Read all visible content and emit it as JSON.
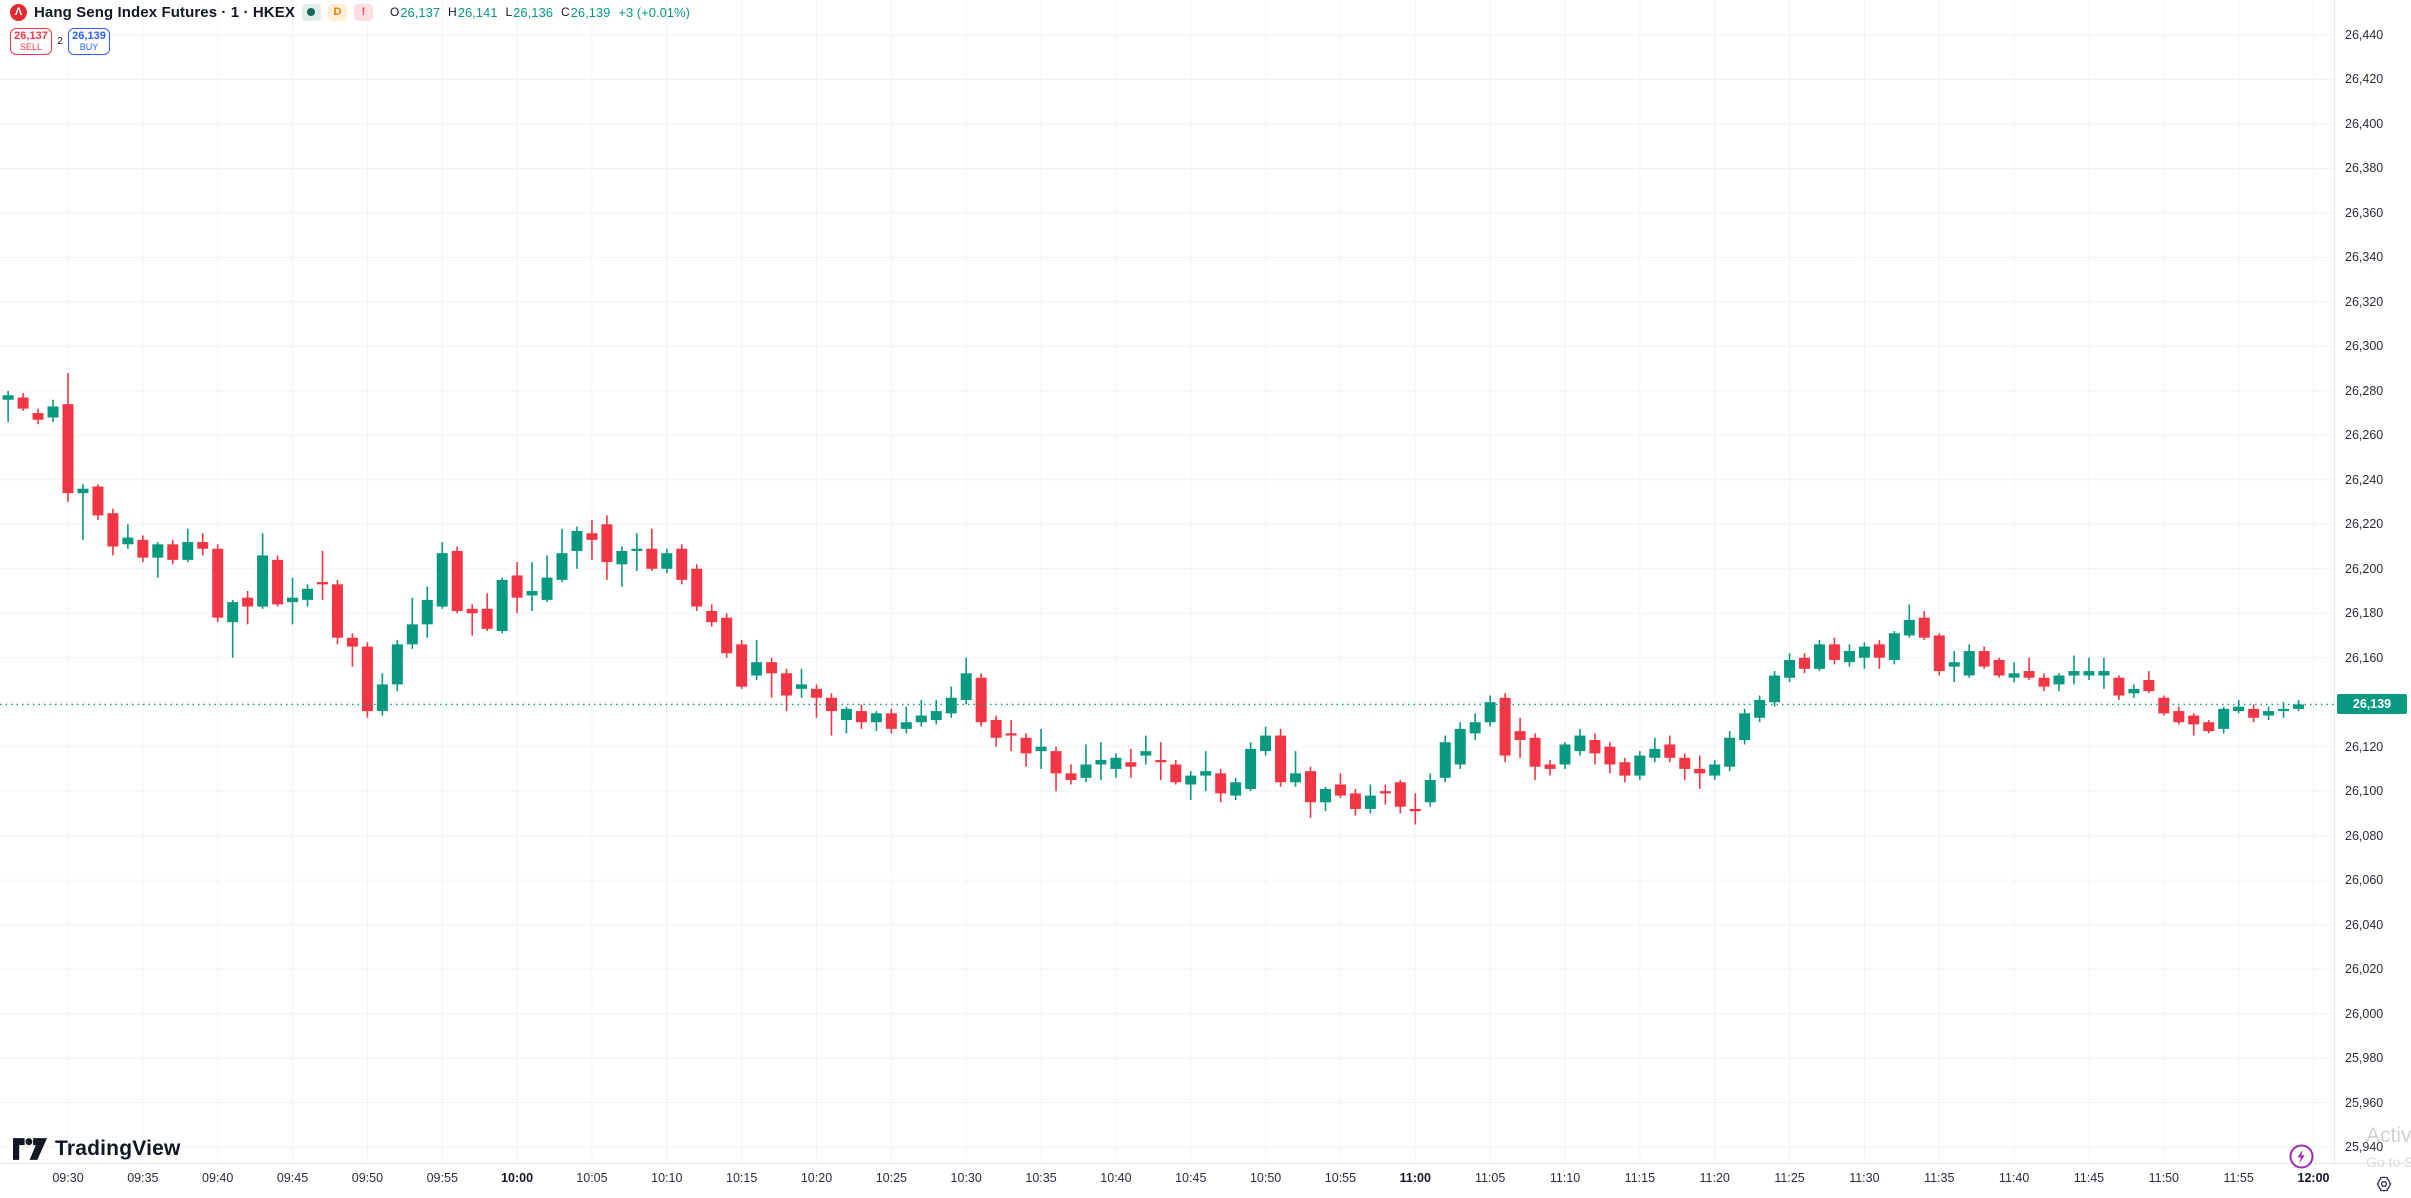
{
  "header": {
    "logo_glyph": "Λ",
    "symbol_title": "Hang Seng Index Futures · 1 · HKEX",
    "interval_badge": "D",
    "alert_badge": "!",
    "ohlc": {
      "o_letter": "O",
      "o_value": "26,137",
      "h_letter": "H",
      "h_value": "26,141",
      "l_letter": "L",
      "l_value": "26,136",
      "c_letter": "C",
      "c_value": "26,139",
      "change": "+3 (+0.01%)"
    }
  },
  "trade_panel": {
    "sell_price": "26,137",
    "sell_label": "SELL",
    "spread": "2",
    "buy_price": "26,139",
    "buy_label": "BUY"
  },
  "brand": {
    "name": "TradingView"
  },
  "os_watermark": {
    "line1": "Activ",
    "line2": "Go to S"
  },
  "last_price": {
    "value": 26139,
    "label": "26,139"
  },
  "chart_data": {
    "type": "candlestick",
    "title": "Hang Seng Index Futures",
    "interval_minutes": 1,
    "exchange": "HKEX",
    "up_color": "#089981",
    "down_color": "#f23645",
    "grid_color": "#f0f3fa",
    "price_line_color": "#089981",
    "ylim": [
      25932,
      26456
    ],
    "y_ticks": [
      26440,
      26420,
      26400,
      26380,
      26360,
      26340,
      26320,
      26300,
      26280,
      26260,
      26240,
      26220,
      26200,
      26180,
      26160,
      26120,
      26100,
      26080,
      26060,
      26040,
      26020,
      26000,
      25980,
      25960,
      25940
    ],
    "x_ticks": [
      "09:30",
      "09:35",
      "09:40",
      "09:45",
      "09:50",
      "09:55",
      "10:00",
      "10:05",
      "10:10",
      "10:15",
      "10:20",
      "10:25",
      "10:30",
      "10:35",
      "10:40",
      "10:45",
      "10:50",
      "10:55",
      "11:00",
      "11:05",
      "11:10",
      "11:15",
      "11:20",
      "11:25",
      "11:30",
      "11:35",
      "11:40",
      "11:45",
      "11:50",
      "11:55",
      "12:00"
    ],
    "bold_x_ticks": [
      "10:00",
      "11:00",
      "12:00"
    ],
    "candles": [
      [
        "09:26",
        26276,
        26280,
        26266,
        26278
      ],
      [
        "09:27",
        26277,
        26279,
        26271,
        26272
      ],
      [
        "09:28",
        26270,
        26272,
        26265,
        26267
      ],
      [
        "09:29",
        26268,
        26276,
        26266,
        26273
      ],
      [
        "09:30",
        26274,
        26288,
        26230,
        26234
      ],
      [
        "09:31",
        26234,
        26238,
        26213,
        26236
      ],
      [
        "09:32",
        26237,
        26238,
        26222,
        26224
      ],
      [
        "09:33",
        26225,
        26227,
        26206,
        26210
      ],
      [
        "09:34",
        26211,
        26220,
        26209,
        26214
      ],
      [
        "09:35",
        26213,
        26215,
        26203,
        26205
      ],
      [
        "09:36",
        26205,
        26212,
        26196,
        26211
      ],
      [
        "09:37",
        26211,
        26213,
        26202,
        26204
      ],
      [
        "09:38",
        26204,
        26218,
        26203,
        26212
      ],
      [
        "09:39",
        26212,
        26216,
        26206,
        26209
      ],
      [
        "09:40",
        26209,
        26211,
        26176,
        26178
      ],
      [
        "09:41",
        26176,
        26186,
        26160,
        26185
      ],
      [
        "09:42",
        26187,
        26190,
        26175,
        26183
      ],
      [
        "09:43",
        26183,
        26216,
        26182,
        26206
      ],
      [
        "09:44",
        26204,
        26206,
        26183,
        26184
      ],
      [
        "09:45",
        26185,
        26196,
        26175,
        26187
      ],
      [
        "09:46",
        26186,
        26193,
        26183,
        26191
      ],
      [
        "09:47",
        26194,
        26208,
        26186,
        26193
      ],
      [
        "09:48",
        26193,
        26195,
        26166,
        26169
      ],
      [
        "09:49",
        26169,
        26171,
        26156,
        26165
      ],
      [
        "09:50",
        26165,
        26167,
        26133,
        26136
      ],
      [
        "09:51",
        26136,
        26153,
        26134,
        26148
      ],
      [
        "09:52",
        26148,
        26168,
        26145,
        26166
      ],
      [
        "09:53",
        26166,
        26187,
        26164,
        26175
      ],
      [
        "09:54",
        26175,
        26192,
        26169,
        26186
      ],
      [
        "09:55",
        26183,
        26212,
        26182,
        26207
      ],
      [
        "09:56",
        26208,
        26210,
        26180,
        26181
      ],
      [
        "09:57",
        26182,
        26184,
        26170,
        26180
      ],
      [
        "09:58",
        26182,
        26189,
        26172,
        26173
      ],
      [
        "09:59",
        26172,
        26196,
        26171,
        26195
      ],
      [
        "10:00",
        26197,
        26203,
        26180,
        26187
      ],
      [
        "10:01",
        26188,
        26203,
        26181,
        26190
      ],
      [
        "10:02",
        26186,
        26206,
        26185,
        26196
      ],
      [
        "10:03",
        26195,
        26218,
        26194,
        26207
      ],
      [
        "10:04",
        26208,
        26219,
        26200,
        26217
      ],
      [
        "10:05",
        26216,
        26222,
        26204,
        26213
      ],
      [
        "10:06",
        26220,
        26224,
        26195,
        26203
      ],
      [
        "10:07",
        26202,
        26210,
        26192,
        26208
      ],
      [
        "10:08",
        26208,
        26216,
        26199,
        26209
      ],
      [
        "10:09",
        26209,
        26218,
        26199,
        26200
      ],
      [
        "10:10",
        26200,
        26209,
        26198,
        26207
      ],
      [
        "10:11",
        26209,
        26211,
        26193,
        26195
      ],
      [
        "10:12",
        26200,
        26202,
        26181,
        26183
      ],
      [
        "10:13",
        26181,
        26184,
        26174,
        26176
      ],
      [
        "10:14",
        26178,
        26180,
        26160,
        26162
      ],
      [
        "10:15",
        26166,
        26168,
        26146,
        26147
      ],
      [
        "10:16",
        26152,
        26168,
        26150,
        26158
      ],
      [
        "10:17",
        26158,
        26160,
        26142,
        26153
      ],
      [
        "10:18",
        26153,
        26155,
        26136,
        26143
      ],
      [
        "10:19",
        26146,
        26155,
        26142,
        26148
      ],
      [
        "10:20",
        26146,
        26148,
        26133,
        26142
      ],
      [
        "10:21",
        26142,
        26144,
        26125,
        26136
      ],
      [
        "10:22",
        26132,
        26138,
        26126,
        26137
      ],
      [
        "10:23",
        26136,
        26139,
        26128,
        26131
      ],
      [
        "10:24",
        26131,
        26136,
        26127,
        26135
      ],
      [
        "10:25",
        26135,
        26137,
        26126,
        26128
      ],
      [
        "10:26",
        26128,
        26138,
        26126,
        26131
      ],
      [
        "10:27",
        26131,
        26141,
        26129,
        26134
      ],
      [
        "10:28",
        26132,
        26141,
        26130,
        26136
      ],
      [
        "10:29",
        26135,
        26147,
        26133,
        26142
      ],
      [
        "10:30",
        26141,
        26160,
        26139,
        26153
      ],
      [
        "10:31",
        26151,
        26153,
        26129,
        26131
      ],
      [
        "10:32",
        26132,
        26134,
        26120,
        26124
      ],
      [
        "10:33",
        26126,
        26132,
        26118,
        26125
      ],
      [
        "10:34",
        26124,
        26126,
        26111,
        26117
      ],
      [
        "10:35",
        26118,
        26128,
        26110,
        26120
      ],
      [
        "10:36",
        26118,
        26120,
        26100,
        26108
      ],
      [
        "10:37",
        26108,
        26112,
        26103,
        26105
      ],
      [
        "10:38",
        26106,
        26121,
        26104,
        26112
      ],
      [
        "10:39",
        26112,
        26122,
        26105,
        26114
      ],
      [
        "10:40",
        26110,
        26117,
        26106,
        26115
      ],
      [
        "10:41",
        26113,
        26119,
        26106,
        26111
      ],
      [
        "10:42",
        26116,
        26125,
        26112,
        26118
      ],
      [
        "10:43",
        26114,
        26122,
        26105,
        26113
      ],
      [
        "10:44",
        26112,
        26114,
        26103,
        26104
      ],
      [
        "10:45",
        26103,
        26109,
        26096,
        26107
      ],
      [
        "10:46",
        26107,
        26118,
        26100,
        26109
      ],
      [
        "10:47",
        26108,
        26110,
        26095,
        26099
      ],
      [
        "10:48",
        26098,
        26106,
        26096,
        26104
      ],
      [
        "10:49",
        26101,
        26122,
        26100,
        26119
      ],
      [
        "10:50",
        26118,
        26129,
        26116,
        26125
      ],
      [
        "10:51",
        26125,
        26128,
        26102,
        26104
      ],
      [
        "10:52",
        26104,
        26118,
        26102,
        26108
      ],
      [
        "10:53",
        26109,
        26111,
        26088,
        26095
      ],
      [
        "10:54",
        26095,
        26102,
        26091,
        26101
      ],
      [
        "10:55",
        26103,
        26108,
        26097,
        26098
      ],
      [
        "10:56",
        26099,
        26101,
        26089,
        26092
      ],
      [
        "10:57",
        26092,
        26103,
        26090,
        26098
      ],
      [
        "10:58",
        26100,
        26103,
        26094,
        26099
      ],
      [
        "10:59",
        26104,
        26105,
        26090,
        26093
      ],
      [
        "11:00",
        26092,
        26099,
        26085,
        26091
      ],
      [
        "11:01",
        26095,
        26108,
        26093,
        26105
      ],
      [
        "11:02",
        26106,
        26125,
        26104,
        26122
      ],
      [
        "11:03",
        26112,
        26131,
        26110,
        26128
      ],
      [
        "11:04",
        26126,
        26135,
        26123,
        26131
      ],
      [
        "11:05",
        26131,
        26143,
        26129,
        26140
      ],
      [
        "11:06",
        26142,
        26144,
        26113,
        26116
      ],
      [
        "11:07",
        26127,
        26133,
        26115,
        26123
      ],
      [
        "11:08",
        26124,
        26126,
        26105,
        26111
      ],
      [
        "11:09",
        26112,
        26114,
        26107,
        26110
      ],
      [
        "11:10",
        26112,
        26122,
        26110,
        26121
      ],
      [
        "11:11",
        26118,
        26128,
        26116,
        26125
      ],
      [
        "11:12",
        26123,
        26126,
        26112,
        26117
      ],
      [
        "11:13",
        26120,
        26122,
        26108,
        26112
      ],
      [
        "11:14",
        26113,
        26115,
        26104,
        26107
      ],
      [
        "11:15",
        26107,
        26118,
        26105,
        26116
      ],
      [
        "11:16",
        26115,
        26124,
        26113,
        26119
      ],
      [
        "11:17",
        26121,
        26125,
        26113,
        26115
      ],
      [
        "11:18",
        26115,
        26117,
        26105,
        26110
      ],
      [
        "11:19",
        26110,
        26116,
        26101,
        26108
      ],
      [
        "11:20",
        26107,
        26114,
        26105,
        26112
      ],
      [
        "11:21",
        26111,
        26127,
        26109,
        26124
      ],
      [
        "11:22",
        26123,
        26137,
        26121,
        26135
      ],
      [
        "11:23",
        26133,
        26143,
        26131,
        26141
      ],
      [
        "11:24",
        26140,
        26154,
        26138,
        26152
      ],
      [
        "11:25",
        26151,
        26162,
        26149,
        26159
      ],
      [
        "11:26",
        26160,
        26162,
        26153,
        26155
      ],
      [
        "11:27",
        26155,
        26168,
        26154,
        26166
      ],
      [
        "11:28",
        26166,
        26169,
        26157,
        26159
      ],
      [
        "11:29",
        26158,
        26166,
        26156,
        26163
      ],
      [
        "11:30",
        26160,
        26167,
        26155,
        26165
      ],
      [
        "11:31",
        26166,
        26168,
        26155,
        26160
      ],
      [
        "11:32",
        26159,
        26172,
        26157,
        26171
      ],
      [
        "11:33",
        26170,
        26184,
        26169,
        26177
      ],
      [
        "11:34",
        26178,
        26181,
        26168,
        26169
      ],
      [
        "11:35",
        26170,
        26171,
        26152,
        26154
      ],
      [
        "11:36",
        26156,
        26163,
        26149,
        26158
      ],
      [
        "11:37",
        26152,
        26166,
        26151,
        26163
      ],
      [
        "11:38",
        26163,
        26165,
        26155,
        26156
      ],
      [
        "11:39",
        26159,
        26160,
        26151,
        26152
      ],
      [
        "11:40",
        26151,
        26158,
        26149,
        26153
      ],
      [
        "11:41",
        26154,
        26160,
        26150,
        26151
      ],
      [
        "11:42",
        26151,
        26153,
        26145,
        26147
      ],
      [
        "11:43",
        26148,
        26153,
        26145,
        26152
      ],
      [
        "11:44",
        26152,
        26161,
        26148,
        26154
      ],
      [
        "11:45",
        26152,
        26160,
        26150,
        26154
      ],
      [
        "11:46",
        26152,
        26160,
        26146,
        26154
      ],
      [
        "11:47",
        26151,
        26152,
        26141,
        26143
      ],
      [
        "11:48",
        26144,
        26148,
        26142,
        26146
      ],
      [
        "11:49",
        26150,
        26154,
        26144,
        26145
      ],
      [
        "11:50",
        26142,
        26143,
        26134,
        26135
      ],
      [
        "11:51",
        26136,
        26138,
        26130,
        26131
      ],
      [
        "11:52",
        26134,
        26135,
        26125,
        26130
      ],
      [
        "11:53",
        26131,
        26132,
        26126,
        26127
      ],
      [
        "11:54",
        26128,
        26138,
        26126,
        26137
      ],
      [
        "11:55",
        26136,
        26141,
        26135,
        26138
      ],
      [
        "11:56",
        26137,
        26139,
        26131,
        26133
      ],
      [
        "11:57",
        26134,
        26138,
        26132,
        26136
      ],
      [
        "11:58",
        26136,
        26140,
        26133,
        26137
      ],
      [
        "11:59",
        26137,
        26141,
        26136,
        26139
      ]
    ]
  }
}
